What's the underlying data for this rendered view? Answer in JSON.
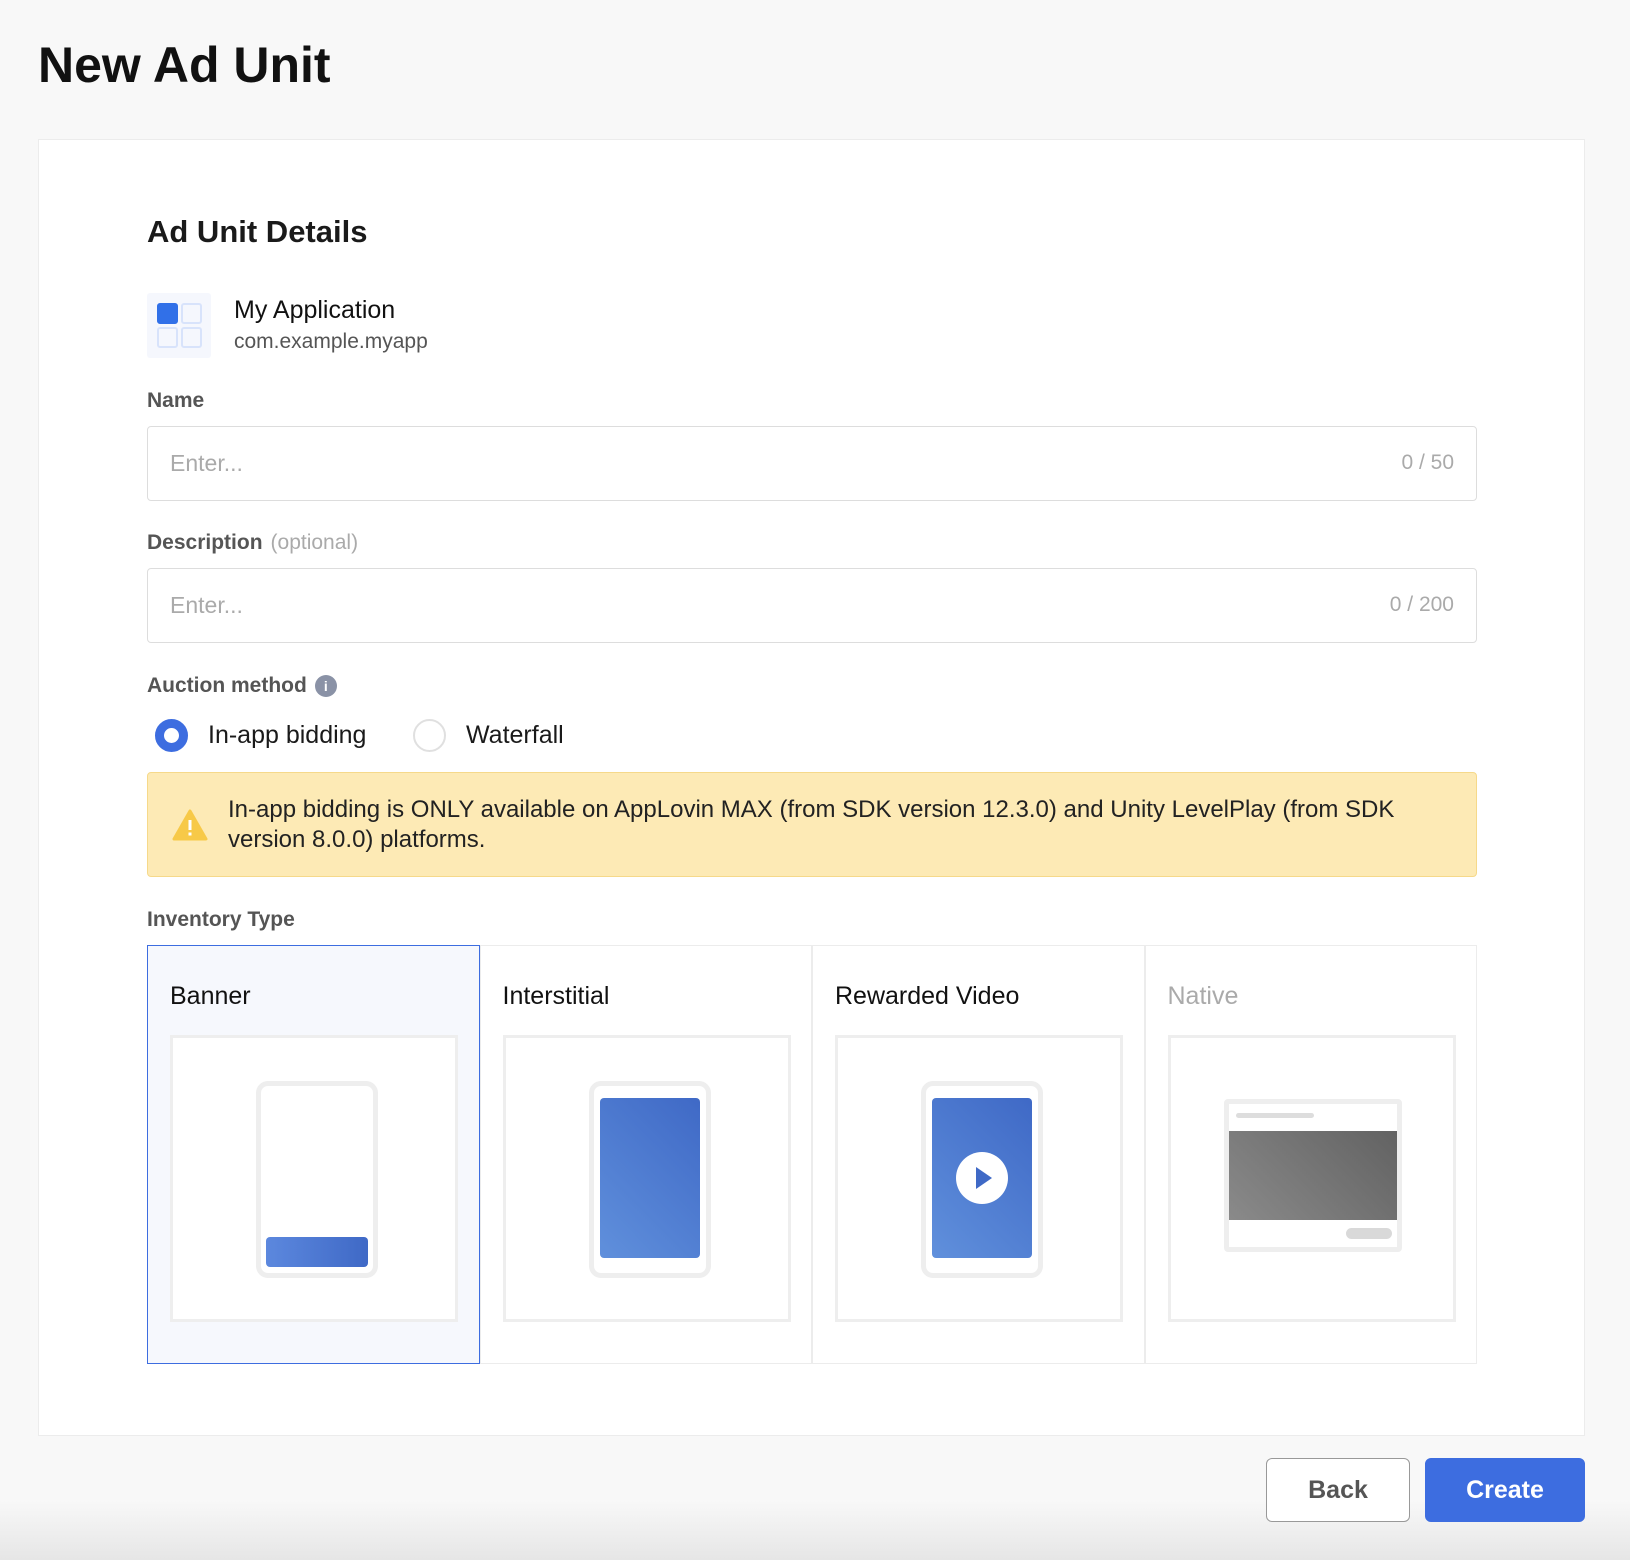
{
  "page": {
    "title": "New Ad Unit"
  },
  "details": {
    "title": "Ad Unit Details",
    "app": {
      "name": "My Application",
      "package": "com.example.myapp",
      "icon": "app-grid-icon"
    },
    "name_field": {
      "label": "Name",
      "placeholder": "Enter...",
      "value": "",
      "counter": "0 / 50"
    },
    "description_field": {
      "label": "Description",
      "optional": "(optional)",
      "placeholder": "Enter...",
      "value": "",
      "counter": "0 / 200"
    },
    "auction": {
      "label": "Auction method",
      "info_icon": "i",
      "options": [
        {
          "label": "In-app bidding",
          "selected": true
        },
        {
          "label": "Waterfall",
          "selected": false
        }
      ]
    },
    "warning": {
      "icon": "warning-icon",
      "text": "In-app bidding is ONLY available on AppLovin MAX (from SDK version 12.3.0) and Unity LevelPlay (from SDK version 8.0.0) platforms."
    },
    "inventory": {
      "label": "Inventory Type",
      "types": [
        {
          "label": "Banner",
          "selected": true
        },
        {
          "label": "Interstitial"
        },
        {
          "label": "Rewarded Video"
        },
        {
          "label": "Native",
          "disabled": true
        }
      ]
    }
  },
  "actions": {
    "back": "Back",
    "create": "Create"
  },
  "colors": {
    "accent": "#3d6de0",
    "warning_bg": "#fdeab5",
    "warning_icon": "#f7c948"
  }
}
